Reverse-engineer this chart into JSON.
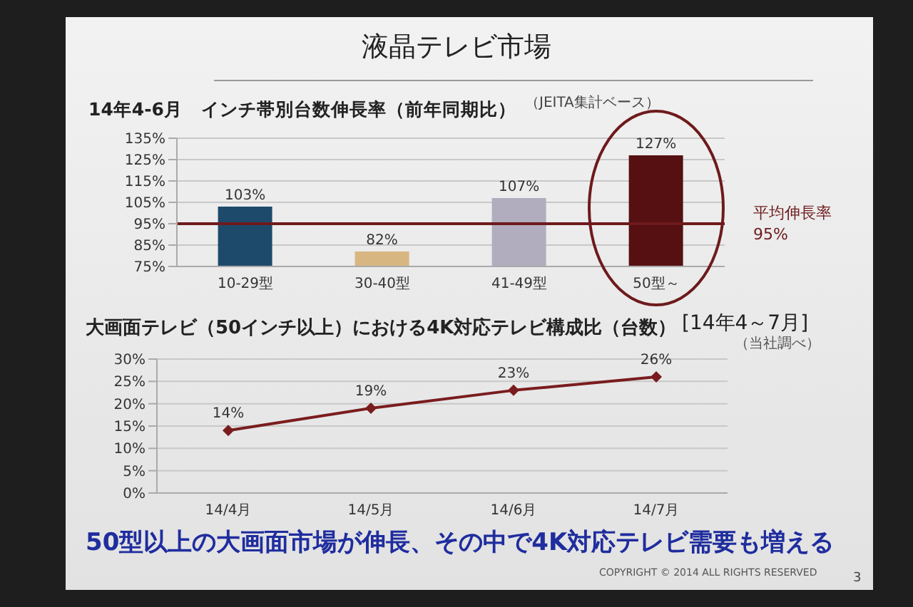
{
  "chart_data": [
    {
      "type": "bar",
      "title": "液晶テレビ市場",
      "subtitle": "14年4-6月　インチ帯別台数伸長率（前年同期比）",
      "annotations": [
        "（JEITA集計ベース）"
      ],
      "categories": [
        "10-29型",
        "30-40型",
        "41-49型",
        "50型～"
      ],
      "values": [
        103,
        82,
        107,
        127
      ],
      "colors": [
        "#1d4a6b",
        "#d8b682",
        "#b1adbf",
        "#561012"
      ],
      "value_labels": [
        "103%",
        "82%",
        "107%",
        "127%"
      ],
      "ylim": [
        75,
        135
      ],
      "yticks": [
        {
          "value": 75,
          "label": "75%"
        },
        {
          "value": 85,
          "label": "85%"
        },
        {
          "value": 95,
          "label": "95%"
        },
        {
          "value": 105,
          "label": "105%"
        },
        {
          "value": 115,
          "label": "115%"
        },
        {
          "value": 125,
          "label": "125%"
        },
        {
          "value": 135,
          "label": "135%"
        }
      ],
      "ref_lines": [
        {
          "axis": "y",
          "value": 95,
          "label": "平均伸長率\n95%",
          "color": "#6e1a1c"
        }
      ],
      "grid": "y"
    },
    {
      "type": "line",
      "title": "大画面テレビ（50インチ以上）における4K対応テレビ構成比（台数）",
      "subtitle": "[14年4～7月]",
      "annotations": [
        "（当社調べ）",
        "50型以上の大画面市場が伸長、その中で4K対応テレビ需要も増える",
        "COPYRIGHT © 2014 ALL RIGHTS RESERVED",
        "3"
      ],
      "categories": [
        "14/4月",
        "14/5月",
        "14/6月",
        "14/7月"
      ],
      "values": [
        14,
        19,
        23,
        26
      ],
      "color": "#7a1c1e",
      "marker": "diamond",
      "value_labels": [
        "14%",
        "19%",
        "23%",
        "26%"
      ],
      "ylim": [
        0,
        30
      ],
      "yticks": [
        {
          "value": 0,
          "label": "0%"
        },
        {
          "value": 5,
          "label": "5%"
        },
        {
          "value": 10,
          "label": "10%"
        },
        {
          "value": 15,
          "label": "15%"
        },
        {
          "value": 20,
          "label": "20%"
        },
        {
          "value": 25,
          "label": "25%"
        },
        {
          "value": 30,
          "label": "30%"
        }
      ],
      "grid": "y"
    }
  ]
}
